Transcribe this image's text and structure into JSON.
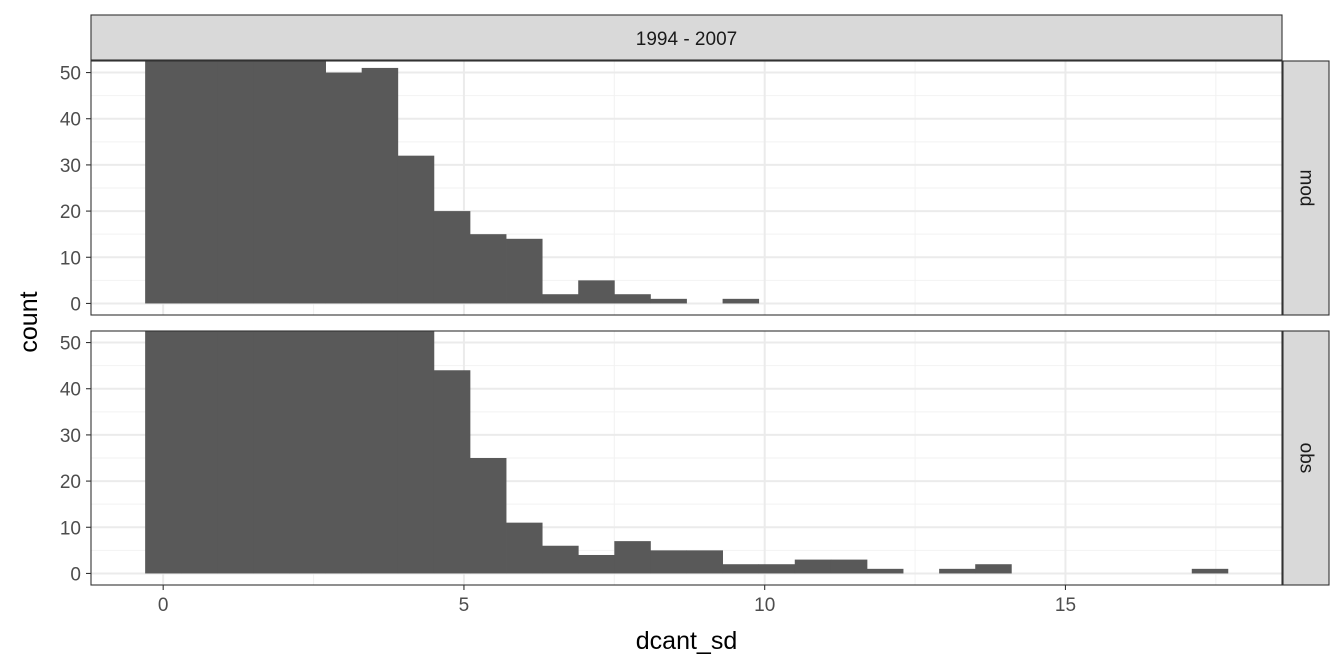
{
  "chart_data": {
    "type": "bar",
    "title": "",
    "xlabel": "dcant_sd",
    "ylabel": "count",
    "column_strip": "1994 - 2007",
    "xlim": [
      -1.2,
      18.6
    ],
    "ylim": [
      -2.5,
      52.5
    ],
    "x_ticks": [
      0,
      5,
      10,
      15
    ],
    "y_ticks": [
      0,
      10,
      20,
      30,
      40,
      50
    ],
    "bin_width": 0.6,
    "bar_color": "#595959",
    "grid": true,
    "panels": [
      {
        "label": "mod",
        "bins": [
          {
            "x": [
              -0.3,
              0.3
            ],
            "count": 53
          },
          {
            "x": [
              0.3,
              0.9
            ],
            "count": 53
          },
          {
            "x": [
              0.9,
              1.5
            ],
            "count": 53
          },
          {
            "x": [
              1.5,
              2.1
            ],
            "count": 53
          },
          {
            "x": [
              2.1,
              2.7
            ],
            "count": 53
          },
          {
            "x": [
              2.7,
              3.3
            ],
            "count": 50
          },
          {
            "x": [
              3.3,
              3.9
            ],
            "count": 51
          },
          {
            "x": [
              3.9,
              4.5
            ],
            "count": 32
          },
          {
            "x": [
              4.5,
              5.1
            ],
            "count": 20
          },
          {
            "x": [
              5.1,
              5.7
            ],
            "count": 15
          },
          {
            "x": [
              5.7,
              6.3
            ],
            "count": 14
          },
          {
            "x": [
              6.3,
              6.9
            ],
            "count": 2
          },
          {
            "x": [
              6.9,
              7.5
            ],
            "count": 5
          },
          {
            "x": [
              7.5,
              8.1
            ],
            "count": 2
          },
          {
            "x": [
              8.1,
              8.7
            ],
            "count": 1
          },
          {
            "x": [
              9.3,
              9.9
            ],
            "count": 1
          }
        ]
      },
      {
        "label": "obs",
        "bins": [
          {
            "x": [
              -0.3,
              0.3
            ],
            "count": 53
          },
          {
            "x": [
              0.3,
              0.9
            ],
            "count": 53
          },
          {
            "x": [
              0.9,
              1.5
            ],
            "count": 53
          },
          {
            "x": [
              1.5,
              2.1
            ],
            "count": 53
          },
          {
            "x": [
              2.1,
              2.7
            ],
            "count": 53
          },
          {
            "x": [
              2.7,
              3.3
            ],
            "count": 53
          },
          {
            "x": [
              3.3,
              3.9
            ],
            "count": 53
          },
          {
            "x": [
              3.9,
              4.5
            ],
            "count": 53
          },
          {
            "x": [
              4.5,
              5.1
            ],
            "count": 44
          },
          {
            "x": [
              5.1,
              5.7
            ],
            "count": 25
          },
          {
            "x": [
              5.7,
              6.3
            ],
            "count": 11
          },
          {
            "x": [
              6.3,
              6.9
            ],
            "count": 6
          },
          {
            "x": [
              6.9,
              7.5
            ],
            "count": 4
          },
          {
            "x": [
              7.5,
              8.1
            ],
            "count": 7
          },
          {
            "x": [
              8.1,
              8.7
            ],
            "count": 5
          },
          {
            "x": [
              8.7,
              9.3
            ],
            "count": 5
          },
          {
            "x": [
              9.3,
              9.9
            ],
            "count": 2
          },
          {
            "x": [
              9.9,
              10.5
            ],
            "count": 2
          },
          {
            "x": [
              10.5,
              11.1
            ],
            "count": 3
          },
          {
            "x": [
              11.1,
              11.7
            ],
            "count": 3
          },
          {
            "x": [
              11.7,
              12.3
            ],
            "count": 1
          },
          {
            "x": [
              12.9,
              13.5
            ],
            "count": 1
          },
          {
            "x": [
              13.5,
              14.1
            ],
            "count": 2
          },
          {
            "x": [
              17.1,
              17.7
            ],
            "count": 1
          }
        ]
      }
    ]
  }
}
